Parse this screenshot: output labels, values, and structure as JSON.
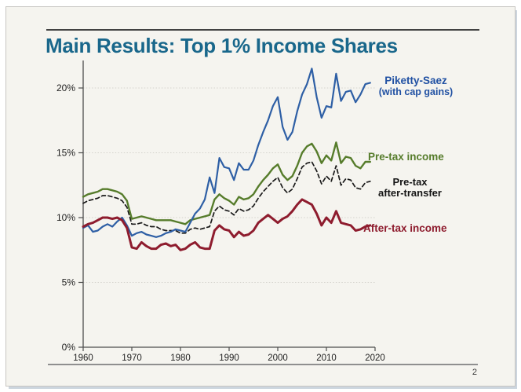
{
  "slide": {
    "title": "Main Results: Top 1% Income Shares",
    "page_number": "2"
  },
  "colors": {
    "slide_background": "#f5f4ef",
    "title": "#19678b",
    "piketty_saez_line": "#2e5fa5",
    "piketty_saez_label": "#2151a3",
    "pretax_line": "#567c2b",
    "pretax_after_transfer_line": "#1a1a1a",
    "aftertax_line": "#8e1c2e",
    "axis": "#4d4d4d",
    "gridline": "#d4d2cc"
  },
  "chart_data": {
    "type": "line",
    "title": "Top 1% Income Shares",
    "xlabel": "",
    "ylabel": "",
    "xlim": [
      1960,
      2020
    ],
    "ylim": [
      0,
      22
    ],
    "grid": "horizontal-dotted",
    "legend_position": "inline-right-of-lines",
    "x_ticks": [
      {
        "label": "1960",
        "year": 1960
      },
      {
        "label": "1970",
        "year": 1970
      },
      {
        "label": "1980",
        "year": 1980
      },
      {
        "label": "1990",
        "year": 1990
      },
      {
        "label": "2000",
        "year": 2000
      },
      {
        "label": "2010",
        "year": 2010
      },
      {
        "label": "2020",
        "year": 2020
      }
    ],
    "y_ticks": [
      {
        "label": "0%",
        "value": 0
      },
      {
        "label": "5%",
        "value": 5
      },
      {
        "label": "10%",
        "value": 10
      },
      {
        "label": "15%",
        "value": 15
      },
      {
        "label": "20%",
        "value": 20
      }
    ],
    "x": [
      1960,
      1961,
      1962,
      1963,
      1964,
      1965,
      1966,
      1967,
      1968,
      1969,
      1970,
      1971,
      1972,
      1973,
      1974,
      1975,
      1976,
      1977,
      1978,
      1979,
      1980,
      1981,
      1982,
      1983,
      1984,
      1985,
      1986,
      1987,
      1988,
      1989,
      1990,
      1991,
      1992,
      1993,
      1994,
      1995,
      1996,
      1997,
      1998,
      1999,
      2000,
      2001,
      2002,
      2003,
      2004,
      2005,
      2006,
      2007,
      2008,
      2009,
      2010,
      2011,
      2012,
      2013,
      2014,
      2015,
      2016,
      2017,
      2018,
      2019
    ],
    "series": [
      {
        "name": "Piketty-Saez (with cap gains)",
        "label_line1": "Piketty-Saez",
        "label_line2": "(with cap gains)",
        "color": "#2e5fa5",
        "style": "solid",
        "width": 2.2,
        "values": [
          9.2,
          9.4,
          8.9,
          9.0,
          9.3,
          9.5,
          9.3,
          9.7,
          10.0,
          9.4,
          8.6,
          8.8,
          8.9,
          8.7,
          8.6,
          8.5,
          8.6,
          8.8,
          8.9,
          9.1,
          9.0,
          8.9,
          9.6,
          10.3,
          10.7,
          11.4,
          13.1,
          11.9,
          14.6,
          13.9,
          13.8,
          12.9,
          14.2,
          13.7,
          13.7,
          14.4,
          15.6,
          16.6,
          17.5,
          18.6,
          19.3,
          17.0,
          16.0,
          16.6,
          18.2,
          19.5,
          20.3,
          21.5,
          19.3,
          17.7,
          18.6,
          18.5,
          21.1,
          19.0,
          19.7,
          19.8,
          18.9,
          19.5,
          20.3,
          20.4
        ]
      },
      {
        "name": "Pre-tax income",
        "label": "Pre-tax income",
        "color": "#567c2b",
        "style": "solid",
        "width": 2.4,
        "values": [
          11.6,
          11.8,
          11.9,
          12.0,
          12.2,
          12.2,
          12.1,
          12.0,
          11.8,
          11.3,
          9.9,
          10.0,
          10.1,
          10.0,
          9.9,
          9.8,
          9.8,
          9.8,
          9.8,
          9.7,
          9.6,
          9.5,
          9.8,
          9.9,
          10.0,
          10.1,
          10.2,
          11.4,
          11.8,
          11.5,
          11.3,
          11.0,
          11.6,
          11.4,
          11.5,
          11.8,
          12.4,
          12.9,
          13.3,
          13.8,
          14.1,
          13.3,
          12.9,
          13.2,
          14.0,
          15.0,
          15.5,
          15.7,
          15.1,
          14.2,
          14.8,
          14.4,
          15.8,
          14.2,
          14.7,
          14.6,
          14.0,
          13.8,
          14.3,
          14.3
        ]
      },
      {
        "name": "Pre-tax after-transfer",
        "label_line1": "Pre-tax",
        "label_line2": "after-transfer",
        "color": "#1a1a1a",
        "style": "dashed",
        "width": 1.7,
        "values": [
          11.1,
          11.3,
          11.4,
          11.5,
          11.7,
          11.7,
          11.6,
          11.5,
          11.3,
          10.8,
          9.5,
          9.5,
          9.6,
          9.4,
          9.3,
          9.3,
          9.1,
          9.0,
          9.0,
          9.0,
          8.8,
          8.8,
          9.1,
          9.2,
          9.1,
          9.2,
          9.3,
          10.5,
          10.9,
          10.6,
          10.5,
          10.2,
          10.7,
          10.5,
          10.6,
          10.9,
          11.5,
          12.0,
          12.4,
          12.8,
          13.1,
          12.3,
          11.9,
          12.2,
          13.0,
          13.9,
          14.2,
          14.3,
          13.6,
          12.6,
          13.2,
          12.8,
          14.0,
          12.5,
          13.0,
          12.9,
          12.3,
          12.2,
          12.7,
          12.8
        ]
      },
      {
        "name": "After-tax income",
        "label": "After-tax income",
        "color": "#8e1c2e",
        "style": "solid",
        "width": 3,
        "values": [
          9.3,
          9.5,
          9.6,
          9.8,
          10.0,
          10.0,
          9.9,
          10.0,
          9.8,
          9.2,
          7.7,
          7.6,
          8.1,
          7.8,
          7.6,
          7.6,
          7.9,
          8.0,
          7.8,
          7.9,
          7.5,
          7.6,
          7.9,
          8.1,
          7.7,
          7.6,
          7.6,
          9.0,
          9.4,
          9.1,
          9.0,
          8.5,
          8.9,
          8.6,
          8.7,
          9.0,
          9.6,
          9.9,
          10.2,
          9.9,
          9.6,
          9.9,
          10.1,
          10.5,
          11.0,
          11.4,
          11.2,
          11.0,
          10.3,
          9.4,
          10.0,
          9.6,
          10.5,
          9.6,
          9.5,
          9.4,
          9.0,
          9.1,
          9.3,
          9.4
        ]
      }
    ]
  }
}
